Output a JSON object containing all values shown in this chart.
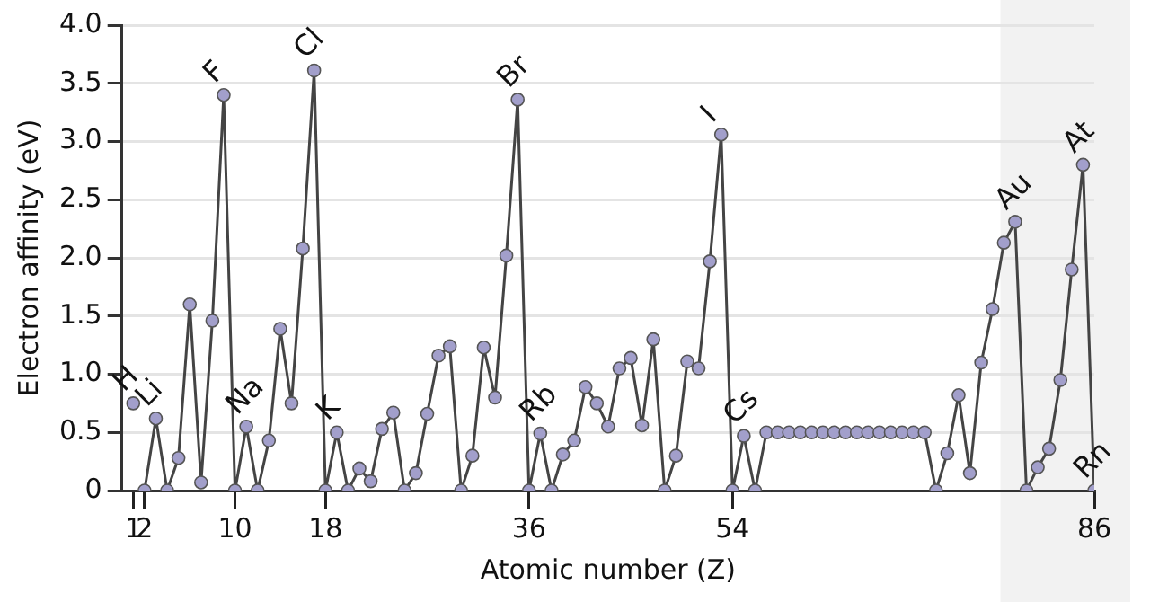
{
  "chart_data": {
    "type": "line",
    "xlabel": "Atomic number (Z)",
    "ylabel": "Electron affinity (eV)",
    "xlim": [
      0,
      86
    ],
    "xticks": [
      1,
      2,
      10,
      18,
      36,
      54,
      86
    ],
    "ylim": [
      0,
      4
    ],
    "yticks": [
      {
        "value": 0,
        "label": "0"
      },
      {
        "value": 0.5,
        "label": "0.5"
      },
      {
        "value": 1,
        "label": "1.0"
      },
      {
        "value": 1.5,
        "label": "1.5"
      },
      {
        "value": 2,
        "label": "2.0"
      },
      {
        "value": 2.5,
        "label": "2.5"
      },
      {
        "value": 3,
        "label": "3.0"
      },
      {
        "value": 3.5,
        "label": "3.5"
      },
      {
        "value": 4,
        "label": "4.0"
      }
    ],
    "grid": "y",
    "legend": false,
    "marker": "circle",
    "line_style": "solid",
    "bands": [
      {
        "axis": "x",
        "from": 77.7,
        "to": 86,
        "color": "#f2f2f2"
      }
    ],
    "series": [
      {
        "color": "#a29fcb",
        "x": [
          1
        ],
        "values": [
          0.75
        ]
      },
      {
        "color": "#a29fcb",
        "x": [
          2,
          3,
          4,
          5,
          6,
          7,
          8,
          9,
          10,
          11,
          12,
          13,
          14,
          15,
          16,
          17,
          18,
          19,
          20,
          21,
          22,
          23,
          24,
          25,
          26,
          27,
          28,
          29,
          30,
          31,
          32,
          33,
          34,
          35,
          36,
          37,
          38,
          39,
          40,
          41,
          42,
          43,
          44,
          45,
          46,
          47,
          48,
          49,
          50,
          51,
          52,
          53,
          54,
          55,
          56,
          57,
          58,
          59,
          60,
          61,
          62,
          63,
          64,
          65,
          66,
          67,
          68,
          69,
          70,
          71,
          72,
          73,
          74,
          75,
          76,
          77,
          78,
          79,
          80,
          81,
          82,
          83,
          84,
          85,
          86
        ],
        "values": [
          0,
          0.62,
          0,
          0.28,
          1.6,
          0.07,
          1.46,
          3.4,
          0,
          0.55,
          0,
          0.43,
          1.39,
          0.75,
          2.08,
          3.61,
          0,
          0.5,
          0,
          0.19,
          0.08,
          0.53,
          0.67,
          0,
          0.15,
          0.66,
          1.16,
          1.24,
          0,
          0.3,
          1.23,
          0.8,
          2.02,
          3.36,
          0,
          0.49,
          0,
          0.31,
          0.43,
          0.89,
          0.75,
          0.55,
          1.05,
          1.14,
          0.56,
          1.3,
          0,
          0.3,
          1.11,
          1.05,
          1.97,
          3.06,
          0,
          0.47,
          0,
          0.5,
          0.5,
          0.5,
          0.5,
          0.5,
          0.5,
          0.5,
          0.5,
          0.5,
          0.5,
          0.5,
          0.5,
          0.5,
          0.5,
          0.5,
          0,
          0.32,
          0.82,
          0.15,
          1.1,
          1.56,
          2.13,
          2.31,
          0,
          0.2,
          0.36,
          0.95,
          1.9,
          2.8,
          0
        ]
      }
    ],
    "annotations": [
      {
        "text": "H",
        "x": 1,
        "y": 0.75
      },
      {
        "text": "Li",
        "x": 3,
        "y": 0.62
      },
      {
        "text": "F",
        "x": 9,
        "y": 3.4
      },
      {
        "text": "Na",
        "x": 11,
        "y": 0.55
      },
      {
        "text": "Cl",
        "x": 17,
        "y": 3.61
      },
      {
        "text": "K",
        "x": 19,
        "y": 0.5
      },
      {
        "text": "Br",
        "x": 35,
        "y": 3.36
      },
      {
        "text": "Rb",
        "x": 37,
        "y": 0.49
      },
      {
        "text": "I",
        "x": 53,
        "y": 3.06
      },
      {
        "text": "Cs",
        "x": 55,
        "y": 0.47
      },
      {
        "text": "Au",
        "x": 79,
        "y": 2.31
      },
      {
        "text": "At",
        "x": 85,
        "y": 2.8
      },
      {
        "text": "Rn",
        "x": 86,
        "y": 0
      }
    ]
  }
}
